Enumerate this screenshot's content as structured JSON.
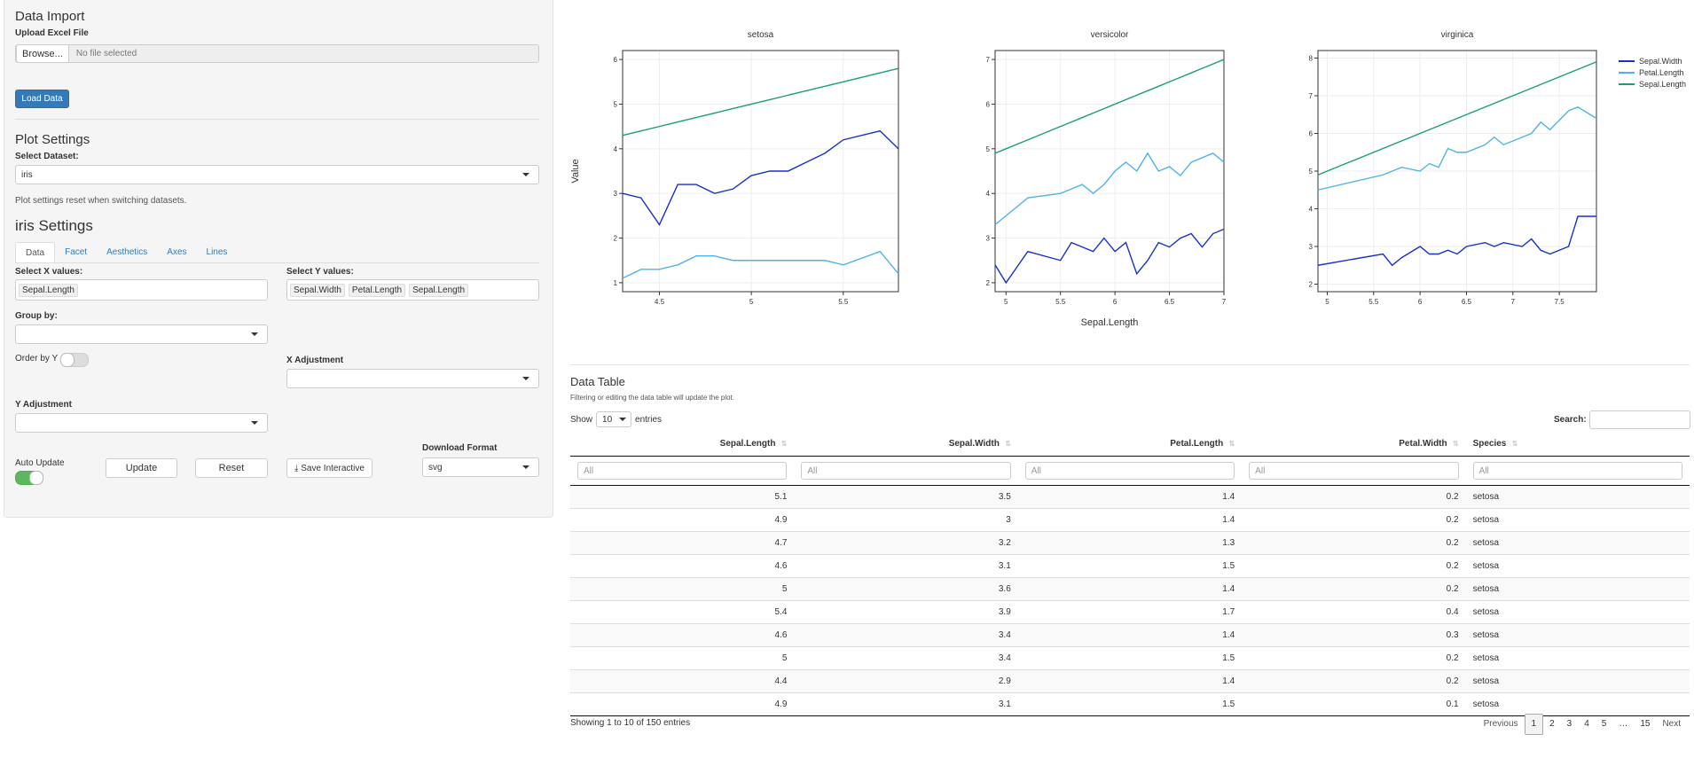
{
  "sidebar": {
    "import_title": "Data Import",
    "upload_label": "Upload Excel File",
    "browse": "Browse...",
    "file_status": "No file selected",
    "load_button": "Load Data",
    "plot_settings_title": "Plot Settings",
    "dataset_label": "Select Dataset:",
    "dataset": "iris",
    "reset_note": "Plot settings reset when switching datasets.",
    "settings_title": "iris Settings",
    "tabs": [
      "Data",
      "Facet",
      "Aesthetics",
      "Axes",
      "Lines"
    ],
    "x_label": "Select X values:",
    "x_values": [
      "Sepal.Length"
    ],
    "y_label": "Select Y values:",
    "y_values": [
      "Sepal.Width",
      "Petal.Length",
      "Sepal.Length"
    ],
    "group_label": "Group by:",
    "order_label": "Order by Y",
    "x_adjust_label": "X Adjustment",
    "y_adjust_label": "Y Adjustment",
    "download_label": "Download Format",
    "download_format": "svg",
    "auto_update": "Auto Update",
    "buttons": [
      "Update",
      "Reset",
      "Save Interactive"
    ]
  },
  "plot": {
    "y_label": "Value",
    "x_label": "Sepal.Length",
    "legend": [
      {
        "name": "Sepal.Width",
        "color": "#1a2fd0"
      },
      {
        "name": "Petal.Length",
        "color": "#4fb3e8"
      },
      {
        "name": "Sepal.Length",
        "color": "#1b9e77"
      }
    ],
    "grid": true
  },
  "chart_data": [
    {
      "type": "line",
      "title": "setosa",
      "x": [
        4.3,
        4.4,
        4.5,
        4.6,
        4.7,
        4.8,
        4.9,
        5.0,
        5.1,
        5.2,
        5.3,
        5.4,
        5.5,
        5.7,
        5.8
      ],
      "xlim": [
        4.3,
        5.8
      ],
      "xticks": [
        4.5,
        5,
        5.5
      ],
      "ylim": [
        0.8,
        6.2
      ],
      "yticks": [
        1,
        2,
        3,
        4,
        5,
        6
      ],
      "series": [
        {
          "values": [
            3.0,
            2.9,
            2.3,
            3.2,
            3.2,
            3.0,
            3.1,
            3.4,
            3.5,
            3.5,
            3.7,
            3.9,
            4.2,
            4.4,
            4.0
          ]
        },
        {
          "values": [
            1.1,
            1.3,
            1.3,
            1.4,
            1.6,
            1.6,
            1.5,
            1.5,
            1.5,
            1.5,
            1.5,
            1.5,
            1.4,
            1.7,
            1.2
          ]
        },
        {
          "values": [
            4.3,
            4.4,
            4.5,
            4.6,
            4.7,
            4.8,
            4.9,
            5.0,
            5.1,
            5.2,
            5.3,
            5.4,
            5.5,
            5.7,
            5.8
          ]
        }
      ]
    },
    {
      "type": "line",
      "title": "versicolor",
      "x": [
        4.9,
        5.0,
        5.2,
        5.5,
        5.6,
        5.7,
        5.8,
        5.9,
        6.0,
        6.1,
        6.2,
        6.3,
        6.4,
        6.5,
        6.6,
        6.7,
        6.8,
        6.9,
        7.0
      ],
      "xlim": [
        4.9,
        7.0
      ],
      "xticks": [
        5,
        5.5,
        6,
        6.5,
        7
      ],
      "ylim": [
        1.8,
        7.2
      ],
      "yticks": [
        2,
        3,
        4,
        5,
        6,
        7
      ],
      "series": [
        {
          "values": [
            2.4,
            2.0,
            2.7,
            2.5,
            2.9,
            2.8,
            2.7,
            3.0,
            2.7,
            2.9,
            2.2,
            2.5,
            2.9,
            2.8,
            3.0,
            3.1,
            2.8,
            3.1,
            3.2
          ]
        },
        {
          "values": [
            3.3,
            3.5,
            3.9,
            4.0,
            4.1,
            4.2,
            4.0,
            4.2,
            4.5,
            4.7,
            4.5,
            4.9,
            4.5,
            4.6,
            4.4,
            4.7,
            4.8,
            4.9,
            4.7
          ]
        },
        {
          "values": [
            4.9,
            5.0,
            5.2,
            5.5,
            5.6,
            5.7,
            5.8,
            5.9,
            6.0,
            6.1,
            6.2,
            6.3,
            6.4,
            6.5,
            6.6,
            6.7,
            6.8,
            6.9,
            7.0
          ]
        }
      ]
    },
    {
      "type": "line",
      "title": "virginica",
      "x": [
        4.9,
        5.6,
        5.7,
        5.8,
        6.0,
        6.1,
        6.2,
        6.3,
        6.4,
        6.5,
        6.7,
        6.8,
        6.9,
        7.1,
        7.2,
        7.3,
        7.4,
        7.6,
        7.7,
        7.9
      ],
      "xlim": [
        4.9,
        7.9
      ],
      "xticks": [
        5,
        5.5,
        6,
        6.5,
        7,
        7.5
      ],
      "ylim": [
        1.8,
        8.2
      ],
      "yticks": [
        2,
        3,
        4,
        5,
        6,
        7,
        8
      ],
      "series": [
        {
          "values": [
            2.5,
            2.8,
            2.5,
            2.7,
            3.0,
            2.8,
            2.8,
            2.9,
            2.8,
            3.0,
            3.1,
            3.0,
            3.1,
            3.0,
            3.2,
            2.9,
            2.8,
            3.0,
            3.8,
            3.8
          ]
        },
        {
          "values": [
            4.5,
            4.9,
            5.0,
            5.1,
            5.0,
            5.2,
            5.1,
            5.6,
            5.5,
            5.5,
            5.7,
            5.9,
            5.7,
            5.9,
            6.0,
            6.3,
            6.1,
            6.6,
            6.7,
            6.4
          ]
        },
        {
          "values": [
            4.9,
            5.6,
            5.7,
            5.8,
            6.0,
            6.1,
            6.2,
            6.3,
            6.4,
            6.5,
            6.7,
            6.8,
            6.9,
            7.1,
            7.2,
            7.3,
            7.4,
            7.6,
            7.7,
            7.9
          ]
        }
      ]
    }
  ],
  "table": {
    "title": "Data Table",
    "note": "Filtering or editing the data table will update the plot.",
    "show": "Show",
    "length": "10",
    "entries": "entries",
    "search": "Search:",
    "columns": [
      "Sepal.Length",
      "Sepal.Width",
      "Petal.Length",
      "Petal.Width",
      "Species"
    ],
    "filter_placeholder": "All",
    "rows": [
      [
        5.1,
        3.5,
        1.4,
        0.2,
        "setosa"
      ],
      [
        4.9,
        3,
        1.4,
        0.2,
        "setosa"
      ],
      [
        4.7,
        3.2,
        1.3,
        0.2,
        "setosa"
      ],
      [
        4.6,
        3.1,
        1.5,
        0.2,
        "setosa"
      ],
      [
        5,
        3.6,
        1.4,
        0.2,
        "setosa"
      ],
      [
        5.4,
        3.9,
        1.7,
        0.4,
        "setosa"
      ],
      [
        4.6,
        3.4,
        1.4,
        0.3,
        "setosa"
      ],
      [
        5,
        3.4,
        1.5,
        0.2,
        "setosa"
      ],
      [
        4.4,
        2.9,
        1.4,
        0.2,
        "setosa"
      ],
      [
        4.9,
        3.1,
        1.5,
        0.1,
        "setosa"
      ]
    ],
    "info": "Showing 1 to 10 of 150 entries",
    "pages": [
      "Previous",
      "1",
      "2",
      "3",
      "4",
      "5",
      "…",
      "15",
      "Next"
    ]
  }
}
